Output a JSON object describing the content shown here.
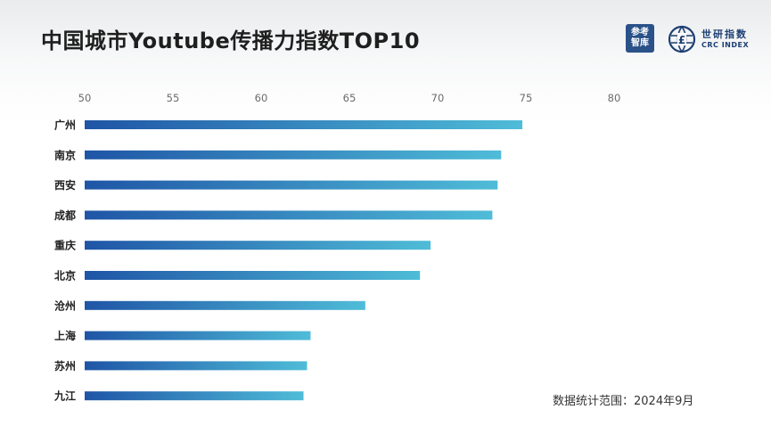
{
  "header": {
    "title": "中国城市Youtube传播力指数TOP10",
    "logo_cankao_line1": "参考",
    "logo_cankao_line2": "智库",
    "logo_crc_cn": "世研指数",
    "logo_crc_en": "CRC INDEX"
  },
  "footer": {
    "note": "数据统计范围：2024年9月"
  },
  "colors": {
    "bar_start": "#1f55a6",
    "bar_end": "#4fbcd8",
    "accent": "#2a5289"
  },
  "chart_data": {
    "type": "bar",
    "orientation": "horizontal",
    "title": "中国城市Youtube传播力指数TOP10",
    "xlabel": "",
    "ylabel": "",
    "xlim": [
      50,
      80
    ],
    "ticks": [
      "50",
      "55",
      "60",
      "65",
      "70",
      "75",
      "80"
    ],
    "categories": [
      "广州",
      "南京",
      "西安",
      "成都",
      "重庆",
      "北京",
      "沧州",
      "上海",
      "苏州",
      "九江"
    ],
    "values": [
      74.8,
      73.6,
      73.4,
      73.1,
      69.6,
      69.0,
      65.9,
      62.8,
      62.6,
      62.4
    ],
    "grid": false,
    "legend": "none"
  }
}
